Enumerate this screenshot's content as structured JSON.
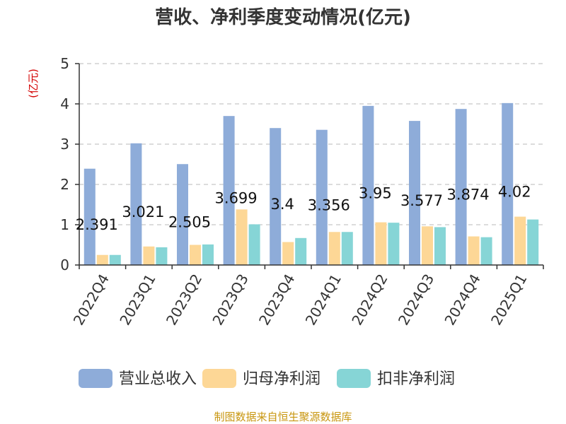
{
  "chart_data": {
    "type": "bar",
    "title": "营收、净利季度变动情况(亿元)",
    "unit_label": "(亿元)",
    "ylim": [
      0,
      5
    ],
    "yticks": [
      0,
      1,
      2,
      3,
      4,
      5
    ],
    "grid": "horizontal-dashed",
    "legend_position": "bottom",
    "categories": [
      "2022Q4",
      "2023Q1",
      "2023Q2",
      "2023Q3",
      "2023Q4",
      "2024Q1",
      "2024Q2",
      "2024Q3",
      "2024Q4",
      "2025Q1"
    ],
    "series": [
      {
        "name": "营业总收入",
        "color": "#8eacd9",
        "values": [
          2.391,
          3.021,
          2.505,
          3.699,
          3.4,
          3.356,
          3.95,
          3.577,
          3.874,
          4.02
        ],
        "data_labels": [
          "2.391",
          "3.021",
          "2.505",
          "3.699",
          "3.4",
          "3.356",
          "3.95",
          "3.577",
          "3.874",
          "4.02"
        ]
      },
      {
        "name": "归母净利润",
        "color": "#fdd796",
        "values": [
          0.25,
          0.46,
          0.5,
          1.38,
          0.57,
          0.82,
          1.06,
          0.96,
          0.71,
          1.2
        ]
      },
      {
        "name": "扣非净利润",
        "color": "#86d5d6",
        "values": [
          0.25,
          0.44,
          0.51,
          1.01,
          0.67,
          0.82,
          1.05,
          0.94,
          0.69,
          1.13
        ]
      }
    ],
    "source": "制图数据来自恒生聚源数据库"
  }
}
